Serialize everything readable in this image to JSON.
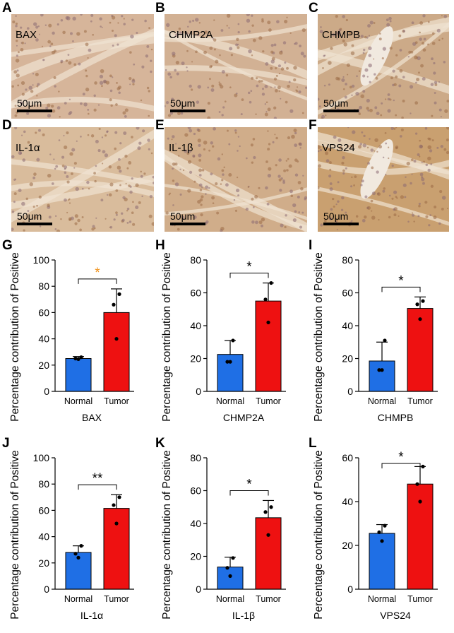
{
  "photos": [
    {
      "letter": "A",
      "stain": "BAX",
      "scale": "50μm",
      "tone": "#d6b59a",
      "vessel": false
    },
    {
      "letter": "B",
      "stain": "CHMP2A",
      "scale": "50μm",
      "tone": "#d2b194",
      "vessel": false
    },
    {
      "letter": "C",
      "stain": "CHMPB",
      "scale": "50μm",
      "tone": "#ccaa88",
      "vessel": true
    },
    {
      "letter": "D",
      "stain": "IL-1α",
      "scale": "50μm",
      "tone": "#d9bc9c",
      "vessel": false
    },
    {
      "letter": "E",
      "stain": "IL-1β",
      "scale": "50μm",
      "tone": "#d0ad8a",
      "vessel": false
    },
    {
      "letter": "F",
      "stain": "VPS24",
      "scale": "50μm",
      "tone": "#c9a070",
      "vessel": true
    }
  ],
  "colors": {
    "normal": "#1f6fe5",
    "tumor": "#ee1111",
    "sig_default": "#000000",
    "sig_highlight": "#f0921a"
  },
  "chart_data": [
    {
      "letter": "G",
      "type": "bar",
      "title": "BAX",
      "ylabel": "Percentage contribution of Positive",
      "categories": [
        "Normal",
        "Tumor"
      ],
      "values": [
        25,
        60
      ],
      "errors": [
        1.5,
        18
      ],
      "points": [
        [
          26,
          25,
          24.5
        ],
        [
          74,
          66,
          40
        ]
      ],
      "ylim": [
        0,
        100
      ],
      "yticks": [
        0,
        20,
        40,
        60,
        80,
        100
      ],
      "significance": "*",
      "sig_color": "#f0921a"
    },
    {
      "letter": "H",
      "type": "bar",
      "title": "CHMP2A",
      "ylabel": "Percentage contribution of Positive",
      "categories": [
        "Normal",
        "Tumor"
      ],
      "values": [
        22.5,
        55
      ],
      "errors": [
        8.5,
        11
      ],
      "points": [
        [
          31,
          18,
          18
        ],
        [
          66,
          56,
          42
        ]
      ],
      "ylim": [
        0,
        80
      ],
      "yticks": [
        0,
        20,
        40,
        60,
        80
      ],
      "significance": "*",
      "sig_color": "#000000"
    },
    {
      "letter": "I",
      "type": "bar",
      "title": "CHMPB",
      "ylabel": "Percentage contribution of Positive",
      "categories": [
        "Normal",
        "Tumor"
      ],
      "values": [
        18.5,
        50.5
      ],
      "errors": [
        11.5,
        7
      ],
      "points": [
        [
          31,
          13,
          13
        ],
        [
          55,
          53,
          44
        ]
      ],
      "ylim": [
        0,
        80
      ],
      "yticks": [
        0,
        20,
        40,
        60,
        80
      ],
      "significance": "*",
      "sig_color": "#000000"
    },
    {
      "letter": "J",
      "type": "bar",
      "title": "IL-1α",
      "ylabel": "Percentage contribution of Positive",
      "categories": [
        "Normal",
        "Tumor"
      ],
      "values": [
        28,
        61.5
      ],
      "errors": [
        5,
        10.5
      ],
      "points": [
        [
          33,
          27,
          24
        ],
        [
          70,
          64,
          50
        ]
      ],
      "ylim": [
        0,
        100
      ],
      "yticks": [
        0,
        20,
        40,
        60,
        80,
        100
      ],
      "significance": "**",
      "sig_color": "#000000"
    },
    {
      "letter": "K",
      "type": "bar",
      "title": "IL-1β",
      "ylabel": "Percentage contribution of Positive",
      "categories": [
        "Normal",
        "Tumor"
      ],
      "values": [
        13.5,
        43.5
      ],
      "errors": [
        6,
        10.5
      ],
      "points": [
        [
          19,
          13,
          8
        ],
        [
          50,
          47,
          33
        ]
      ],
      "ylim": [
        0,
        80
      ],
      "yticks": [
        0,
        20,
        40,
        60,
        80
      ],
      "significance": "*",
      "sig_color": "#000000"
    },
    {
      "letter": "L",
      "type": "bar",
      "title": "VPS24",
      "ylabel": "Percentage contribution of Positive",
      "categories": [
        "Normal",
        "Tumor"
      ],
      "values": [
        25.5,
        48
      ],
      "errors": [
        4,
        8
      ],
      "points": [
        [
          29,
          26,
          22
        ],
        [
          56,
          48,
          40
        ]
      ],
      "ylim": [
        0,
        60
      ],
      "yticks": [
        0,
        20,
        40,
        60
      ],
      "significance": "*",
      "sig_color": "#000000"
    }
  ]
}
